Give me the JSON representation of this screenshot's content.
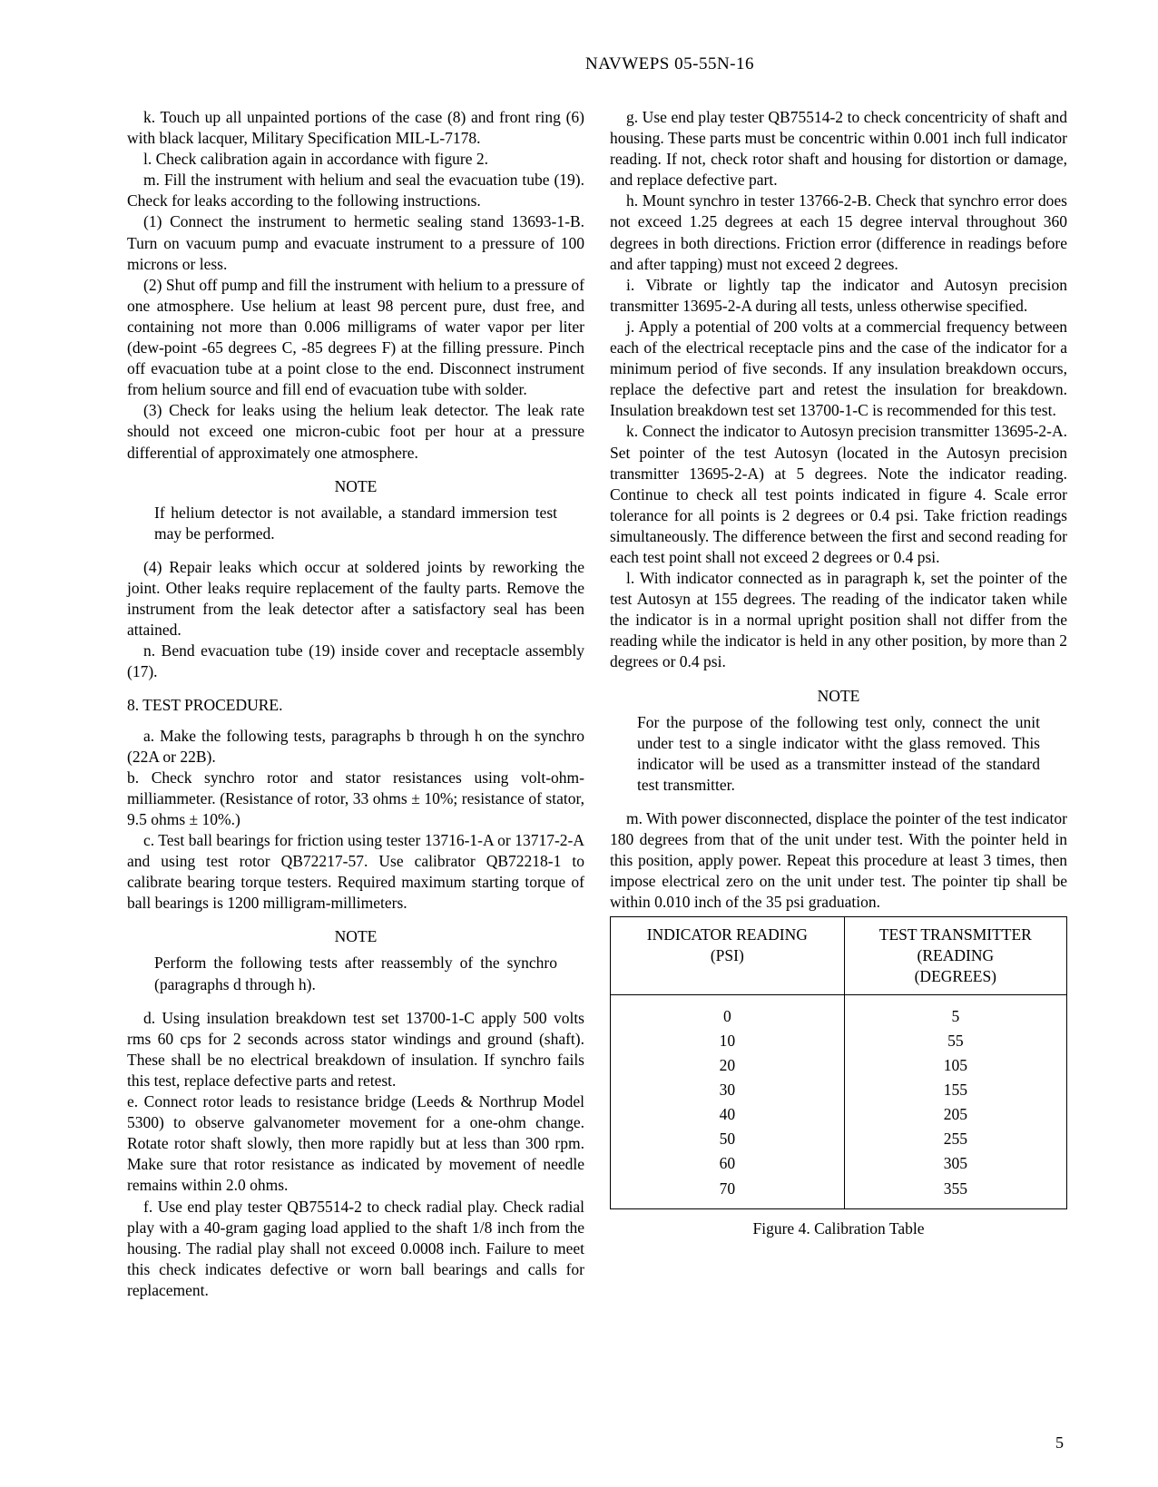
{
  "header": "NAVWEPS 05-55N-16",
  "page_number": "5",
  "left_column": {
    "p_k": "k.  Touch up all unpainted portions of the case (8) and front ring (6) with black lacquer, Military Specification MIL-L-7178.",
    "p_l": "l.  Check calibration again in accordance with figure 2.",
    "p_m": "m.  Fill the instrument with helium and seal the evacuation tube (19). Check for leaks according to the following instructions.",
    "p_m1": "(1) Connect the instrument to hermetic sealing stand 13693-1-B. Turn on vacuum pump and evacuate instrument to a pressure of 100 microns or less.",
    "p_m2": "(2) Shut off pump and fill the instrument with helium to a pressure of one atmosphere. Use helium at least 98 percent pure, dust free, and containing not more than 0.006 milligrams of water vapor per liter (dew-point -65 degrees C, -85 degrees F) at the filling pressure. Pinch off evacuation tube at a point close to the end. Disconnect instrument from helium source and fill end of evacuation tube with solder.",
    "p_m3": "(3) Check for leaks using the helium leak detector. The leak rate should not exceed one micron-cubic foot per hour at a pressure differential of approximately one atmosphere.",
    "note1_heading": "NOTE",
    "note1_body": "If helium detector is not available, a standard immersion test may be performed.",
    "p_m4": "(4) Repair leaks which occur at soldered joints by reworking the joint. Other leaks require replacement of the faulty parts. Remove the instrument from the leak detector after a satisfactory seal has been attained.",
    "p_n": "n.  Bend evacuation tube (19) inside cover and receptacle assembly (17).",
    "section_8": "8.  TEST PROCEDURE.",
    "p_a": "a.  Make the following tests, paragraphs b through h on the synchro (22A or 22B).",
    "p_b": "b.  Check synchro rotor and stator resistances using volt-ohm-milliammeter.  (Resistance of rotor, 33 ohms ± 10%; resistance of stator, 9.5 ohms ± 10%.)",
    "p_c": "c.  Test ball bearings for friction using tester 13716-1-A or 13717-2-A and using test rotor QB72217-57. Use calibrator QB72218-1 to calibrate bearing torque testers. Required maximum starting torque of ball bearings is 1200 milligram-millimeters.",
    "note2_heading": "NOTE",
    "note2_body": "Perform the following tests after reassembly of the synchro (paragraphs d through h).",
    "p_d": "d.  Using insulation breakdown test set 13700-1-C apply 500 volts rms 60 cps for 2 seconds across stator windings and ground (shaft). These shall be no electrical breakdown of insulation. If synchro fails this test, replace defective parts and retest.",
    "p_e": "e.  Connect rotor leads to resistance bridge (Leeds & Northrup Model 5300) to observe galvanometer movement for a one-ohm change. Rotate rotor shaft slowly, then more rapidly but at less than 300 rpm. Make sure that rotor resistance as indicated by movement of needle remains within 2.0 ohms.",
    "p_f": "f.  Use end play tester QB75514-2 to check radial play. Check radial play with a 40-gram gaging load applied to the shaft 1/8 inch from the housing. The radial play shall not exceed 0.0008 inch. Failure to meet this check indicates defective or worn ball bearings and calls for replacement."
  },
  "right_column": {
    "p_g": "g.  Use end play tester QB75514-2 to check concentricity of shaft and housing. These parts must be concentric within 0.001 inch full indicator reading. If not, check rotor shaft and housing for distortion or damage, and replace defective part.",
    "p_h": "h.  Mount synchro in tester 13766-2-B. Check that synchro error does not exceed 1.25 degrees at each 15 degree interval throughout 360 degrees in both directions. Friction error (difference in readings before and after tapping) must not exceed 2 degrees.",
    "p_i": "i.  Vibrate or lightly tap the indicator and Autosyn precision transmitter 13695-2-A during all tests, unless otherwise specified.",
    "p_j": "j.  Apply a potential of 200 volts at a commercial frequency between each of the electrical receptacle pins and the case of the indicator for a minimum period of five seconds. If any insulation breakdown occurs, replace the defective part and retest the insulation for breakdown. Insulation breakdown test set 13700-1-C is recommended for this test.",
    "p_k": "k.  Connect the indicator to Autosyn precision transmitter 13695-2-A. Set pointer of the test Autosyn (located in the Autosyn precision transmitter 13695-2-A) at 5 degrees. Note the indicator reading. Continue to check all test points indicated in figure 4. Scale error tolerance for all points is 2 degrees or 0.4 psi. Take friction readings simultaneously. The difference between the first and second reading for each test point shall not exceed 2 degrees or 0.4 psi.",
    "p_l": "l.  With indicator connected as in paragraph k, set the pointer of the test Autosyn at 155 degrees. The reading of the indicator taken while the indicator is in a normal upright position shall not differ from the reading while the indicator is held in any other position, by more than 2 degrees or 0.4 psi.",
    "note3_heading": "NOTE",
    "note3_body": "For the purpose of the following test only, connect the unit under test to a single indicator witht the glass removed. This indicator will be used as a transmitter instead of the standard test transmitter.",
    "p_m": "m.  With power disconnected, displace the pointer of the test indicator 180 degrees from that of the unit under test. With the pointer held in this position, apply power. Repeat this procedure at least 3 times, then impose electrical zero on the unit under test. The pointer tip shall be within 0.010 inch of the 35 psi graduation."
  },
  "table": {
    "header_left": "INDICATOR READING\n(PSI)",
    "header_right": "TEST TRANSMITTER\n(READING\n(DEGREES)",
    "rows_left": [
      "0",
      "10",
      "20",
      "30",
      "40",
      "50",
      "60",
      "70"
    ],
    "rows_right": [
      "5",
      "55",
      "105",
      "155",
      "205",
      "255",
      "305",
      "355"
    ],
    "caption": "Figure 4.  Calibration Table"
  }
}
